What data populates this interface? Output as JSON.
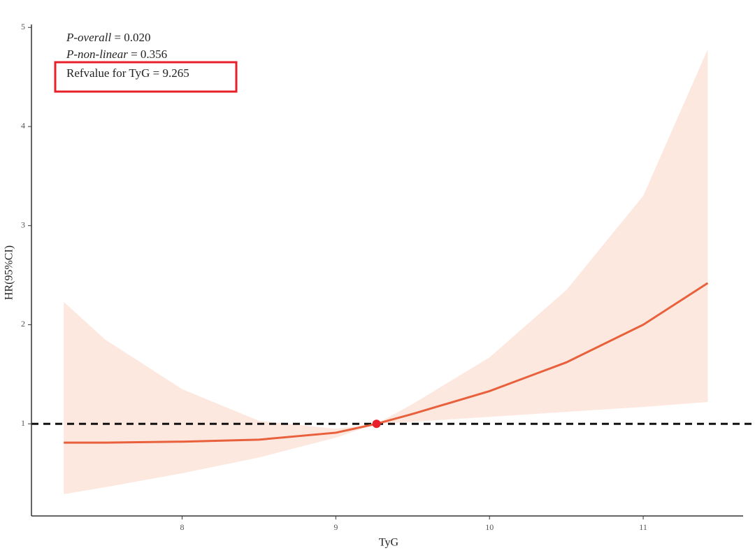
{
  "chart_data": {
    "type": "line",
    "x_label": "TyG",
    "y_label": "HR(95%CI)",
    "annotations": [
      {
        "label": "P-overall",
        "text": "= 0.020"
      },
      {
        "label": "P-non-linear",
        "text": "= 0.356"
      },
      {
        "label": "Refvalue for TyG",
        "text": "= 9.265"
      }
    ],
    "x": [
      7.23,
      7.5,
      8,
      8.5,
      9,
      9.265,
      9.5,
      10,
      10.5,
      11,
      11.42
    ],
    "series": [
      {
        "color": "#e8603c",
        "values": [
          0.81,
          0.81,
          0.82,
          0.84,
          0.91,
          1,
          1.1,
          1.33,
          1.62,
          2.0,
          2.42
        ]
      }
    ],
    "band": {
      "color": "#fde8df",
      "lower": [
        0.29,
        0.36,
        0.5,
        0.66,
        0.86,
        1,
        1.02,
        1.07,
        1.12,
        1.17,
        1.22
      ],
      "upper": [
        2.23,
        1.85,
        1.35,
        1.03,
        0.95,
        1,
        1.2,
        1.67,
        2.35,
        3.3,
        4.78
      ]
    },
    "reference_line": 1,
    "reference_point": {
      "x": 9.265,
      "y": 1,
      "color": "#e8202a"
    },
    "xlim": [
      7.02,
      11.65
    ],
    "ylim": [
      0.07,
      5.03
    ],
    "xticks": [
      8,
      9,
      10,
      11
    ],
    "yticks": [
      1,
      2,
      3,
      4,
      5
    ]
  }
}
